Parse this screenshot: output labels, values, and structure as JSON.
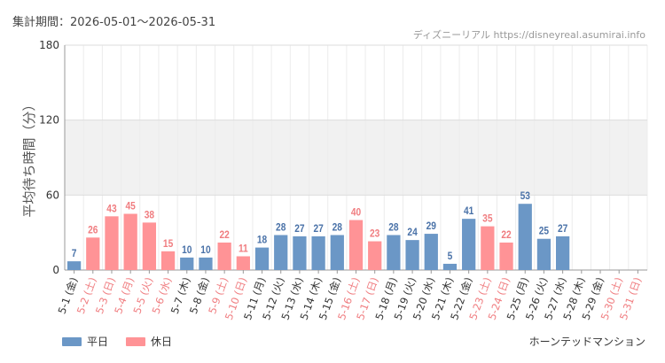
{
  "header": {
    "period_label": "集計期間：2026-05-01～2026-05-31",
    "source_label": "ディズニーリアル https://disneyreal.asumirai.info"
  },
  "footer": {
    "attraction_name": "ホーンテッドマンション"
  },
  "legend": {
    "weekday_label": "平日",
    "holiday_label": "休日"
  },
  "colors": {
    "weekday": "#6b97c6",
    "holiday": "#ff9396",
    "weekday_text": "#4a72a8",
    "holiday_text": "#f07d80",
    "band": "#f1f1f1"
  },
  "chart_data": {
    "type": "bar",
    "ylabel": "平均待ち時間（分）",
    "ylim": [
      0,
      180
    ],
    "yticks": [
      0,
      60,
      120,
      180
    ],
    "shaded_band": [
      60,
      120
    ],
    "categories": [
      "5-1 (金)",
      "5-2 (土)",
      "5-3 (日)",
      "5-4 (月)",
      "5-5 (火)",
      "5-6 (水)",
      "5-7 (木)",
      "5-8 (金)",
      "5-9 (土)",
      "5-10 (日)",
      "5-11 (月)",
      "5-12 (火)",
      "5-13 (水)",
      "5-14 (木)",
      "5-15 (金)",
      "5-16 (土)",
      "5-17 (日)",
      "5-18 (月)",
      "5-19 (火)",
      "5-20 (水)",
      "5-21 (木)",
      "5-22 (金)",
      "5-23 (土)",
      "5-24 (日)",
      "5-25 (月)",
      "5-26 (火)",
      "5-27 (水)",
      "5-28 (木)",
      "5-29 (金)",
      "5-30 (土)",
      "5-31 (日)"
    ],
    "values": [
      7,
      26,
      43,
      45,
      38,
      15,
      10,
      10,
      22,
      11,
      18,
      28,
      27,
      27,
      28,
      40,
      23,
      28,
      24,
      29,
      5,
      41,
      35,
      22,
      53,
      25,
      27,
      null,
      null,
      null,
      null
    ],
    "day_type": [
      "weekday",
      "holiday",
      "holiday",
      "holiday",
      "holiday",
      "holiday",
      "weekday",
      "weekday",
      "holiday",
      "holiday",
      "weekday",
      "weekday",
      "weekday",
      "weekday",
      "weekday",
      "holiday",
      "holiday",
      "weekday",
      "weekday",
      "weekday",
      "weekday",
      "weekday",
      "holiday",
      "holiday",
      "weekday",
      "weekday",
      "weekday",
      "weekday",
      "weekday",
      "holiday",
      "holiday"
    ]
  }
}
